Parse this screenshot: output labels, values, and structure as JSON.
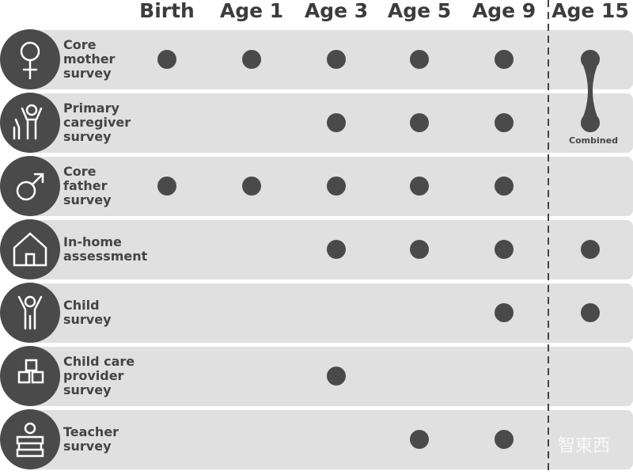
{
  "columns": [
    "Birth",
    "Age 1",
    "Age 3",
    "Age 5",
    "Age 9",
    "Age 15"
  ],
  "rows": [
    {
      "label": [
        "Core",
        "mother",
        "survey"
      ],
      "dots": [
        true,
        true,
        true,
        true,
        true,
        true
      ]
    },
    {
      "label": [
        "Primary",
        "caregiver",
        "survey"
      ],
      "dots": [
        false,
        false,
        true,
        true,
        true,
        true
      ]
    },
    {
      "label": [
        "Core",
        "father",
        "survey"
      ],
      "dots": [
        true,
        true,
        true,
        true,
        true,
        false
      ]
    },
    {
      "label": [
        "In-home",
        "assessment"
      ],
      "dots": [
        false,
        false,
        true,
        true,
        true,
        true
      ]
    },
    {
      "label": [
        "Child",
        "survey"
      ],
      "dots": [
        false,
        false,
        false,
        false,
        true,
        true
      ]
    },
    {
      "label": [
        "Child care",
        "provider",
        "survey"
      ],
      "dots": [
        false,
        false,
        true,
        false,
        false,
        false
      ]
    },
    {
      "label": [
        "Teacher",
        "survey"
      ],
      "dots": [
        false,
        false,
        false,
        true,
        true,
        false
      ]
    }
  ],
  "annotation": "Combined",
  "watermark": "智東西"
}
